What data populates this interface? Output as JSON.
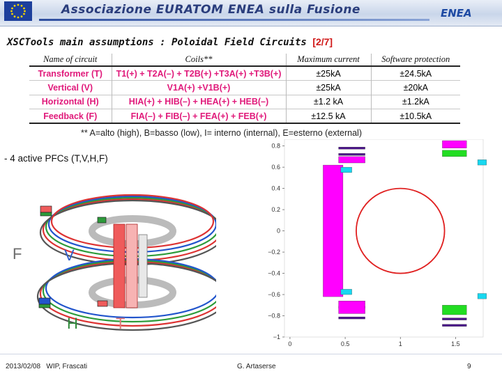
{
  "header": {
    "org_title": "Associazione EURATOM ENEA sulla Fusione",
    "logo_text": "ENEA",
    "eu_flag": "eu-flag-icon"
  },
  "slide": {
    "title": "XSCTools main assumptions : Poloidal Field Circuits",
    "page_ref": "[2/7]"
  },
  "table": {
    "columns": [
      "Name of circuit",
      "Coils**",
      "Maximum current",
      "Software protection"
    ],
    "rows": [
      {
        "name": "Transformer (T)",
        "coils": "T1(+) + T2A(–) + T2B(+) +T3A(+) +T3B(+)",
        "max": "±25kA",
        "prot": "±24.5kA"
      },
      {
        "name": "Vertical (V)",
        "coils": "V1A(+) +V1B(+)",
        "max": "±25kA",
        "prot": "±20kA"
      },
      {
        "name": "Horizontal (H)",
        "coils": "HIA(+) + HIB(–) + HEA(+) + HEB(–)",
        "max": "±1.2 kA",
        "prot": "±1.2kA"
      },
      {
        "name": "Feedback (F)",
        "coils": "FIA(–) + FIB(–) + FEA(+) + FEB(+)",
        "max": "±12.5 kA",
        "prot": "±10.5kA"
      }
    ],
    "note": "** A=alto (high), B=basso (low), I= interno (internal), E=esterno (external)"
  },
  "bullet": "- 4 active PFCs (T,V,H,F)",
  "diagram": {
    "labels": {
      "F": "F",
      "V": "V",
      "H": "H",
      "T": "T"
    },
    "colors": {
      "F": "#6d6d6d",
      "V": "#2f5fc9",
      "H": "#2f8a3a",
      "T": "#e07a7a"
    }
  },
  "chart_data": {
    "type": "scatter",
    "y_ticks": [
      "0.8",
      "0.6",
      "0.4",
      "0.2",
      "0",
      "−0.2",
      "−0.4",
      "−0.6",
      "−0.8",
      "−1"
    ],
    "x_ticks": [
      "0",
      "0.5",
      "1",
      "1.5"
    ],
    "ylim": [
      -1,
      0.85
    ],
    "xlim": [
      -0.05,
      1.75
    ],
    "plasma_circle": {
      "center": [
        1.0,
        0.0
      ],
      "radius": 0.4,
      "color": "#e02020"
    },
    "coils": [
      {
        "id": "T-center",
        "x": [
          0.3,
          0.48
        ],
        "y": [
          -0.62,
          0.62
        ],
        "color": "#ff00ff"
      },
      {
        "id": "H-upper",
        "x": [
          0.46,
          0.56
        ],
        "y": [
          0.55,
          0.6
        ],
        "color": "#18d8f0"
      },
      {
        "id": "H-lower",
        "x": [
          0.46,
          0.56
        ],
        "y": [
          -0.6,
          -0.55
        ],
        "color": "#18d8f0"
      },
      {
        "id": "V-upper-bar",
        "x": [
          0.44,
          0.68
        ],
        "y": [
          0.77,
          0.79
        ],
        "color": "#4a138a"
      },
      {
        "id": "V-upper-bar2",
        "x": [
          0.44,
          0.68
        ],
        "y": [
          0.71,
          0.73
        ],
        "color": "#4a138a"
      },
      {
        "id": "V-lower-bar",
        "x": [
          0.44,
          0.68
        ],
        "y": [
          -0.73,
          -0.71
        ],
        "color": "#4a138a"
      },
      {
        "id": "V-lower-bar2",
        "x": [
          0.44,
          0.68
        ],
        "y": [
          -0.83,
          -0.81
        ],
        "color": "#4a138a"
      },
      {
        "id": "T-upper-inner",
        "x": [
          0.44,
          0.68
        ],
        "y": [
          0.64,
          0.7
        ],
        "color": "#ff00ff"
      },
      {
        "id": "T-lower-inner",
        "x": [
          0.44,
          0.68
        ],
        "y": [
          -0.78,
          -0.66
        ],
        "color": "#ff00ff"
      },
      {
        "id": "T-upper-outer",
        "x": [
          1.38,
          1.6
        ],
        "y": [
          0.78,
          0.85
        ],
        "color": "#ff00ff"
      },
      {
        "id": "F-upper-outer",
        "x": [
          1.38,
          1.6
        ],
        "y": [
          0.7,
          0.76
        ],
        "color": "#22dd22"
      },
      {
        "id": "F-lower-outer",
        "x": [
          1.38,
          1.6
        ],
        "y": [
          -0.79,
          -0.7
        ],
        "color": "#22dd22"
      },
      {
        "id": "V-lower-outer",
        "x": [
          1.38,
          1.6
        ],
        "y": [
          -0.84,
          -0.82
        ],
        "color": "#4a138a"
      },
      {
        "id": "V-lower-outer2",
        "x": [
          1.38,
          1.6
        ],
        "y": [
          -0.9,
          -0.88
        ],
        "color": "#4a138a"
      },
      {
        "id": "H-outer-upper",
        "x": [
          1.7,
          1.78
        ],
        "y": [
          0.62,
          0.67
        ],
        "color": "#18d8f0"
      },
      {
        "id": "H-outer-lower",
        "x": [
          1.7,
          1.78
        ],
        "y": [
          -0.64,
          -0.59
        ],
        "color": "#18d8f0"
      }
    ]
  },
  "footer": {
    "date": "2013/02/08",
    "venue": "WIP, Frascati",
    "author": "G. Artaserse",
    "page": "9"
  }
}
